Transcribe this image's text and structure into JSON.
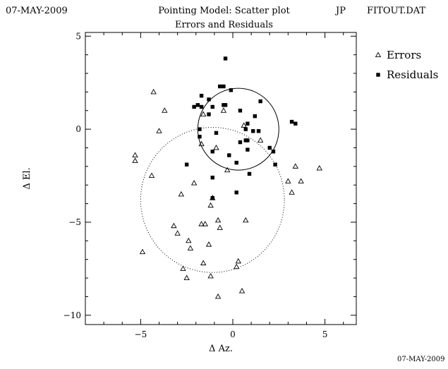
{
  "header": {
    "date": "07-MAY-2009",
    "title": "Pointing Model: Scatter plot",
    "subtitle": "Errors and Residuals",
    "author": "JP",
    "file": "FITOUT.DAT"
  },
  "footer": {
    "date": "07-MAY-2009"
  },
  "chart_data": {
    "type": "scatter",
    "title": "Pointing Model: Scatter plot",
    "subtitle": "Errors and Residuals",
    "xlabel": "Δ Az.",
    "ylabel": "Δ El.",
    "xlim": [
      -8,
      6.7
    ],
    "ylim": [
      -10.5,
      5.2
    ],
    "xticks": [
      -5,
      0,
      5
    ],
    "yticks": [
      5,
      0,
      -5,
      -10
    ],
    "xtick_labels": [
      "−5",
      "0",
      "5"
    ],
    "ytick_labels": [
      "5",
      "0",
      "−5",
      "−10"
    ],
    "grid": false,
    "legend_position": "right",
    "series": [
      {
        "name": "Errors",
        "marker": "triangle-open",
        "color": "#000000",
        "points": [
          [
            -4.3,
            2.0
          ],
          [
            -3.7,
            1.0
          ],
          [
            -4.0,
            -0.1
          ],
          [
            -5.3,
            -1.4
          ],
          [
            -5.3,
            -1.7
          ],
          [
            -4.4,
            -2.5
          ],
          [
            -4.9,
            -6.6
          ],
          [
            -3.2,
            -5.2
          ],
          [
            -3.0,
            -5.6
          ],
          [
            -2.8,
            -3.5
          ],
          [
            -2.4,
            -6.0
          ],
          [
            -2.3,
            -6.4
          ],
          [
            -2.7,
            -7.5
          ],
          [
            -2.5,
            -8.0
          ],
          [
            -2.1,
            -2.9
          ],
          [
            -1.7,
            -5.1
          ],
          [
            -1.5,
            -5.1
          ],
          [
            -1.6,
            -7.2
          ],
          [
            -1.3,
            -6.2
          ],
          [
            -1.2,
            -4.1
          ],
          [
            -1.1,
            -3.7
          ],
          [
            -1.2,
            -7.9
          ],
          [
            -0.8,
            -4.9
          ],
          [
            -0.7,
            -5.3
          ],
          [
            -0.8,
            -9.0
          ],
          [
            -0.9,
            -1.0
          ],
          [
            -1.6,
            0.8
          ],
          [
            -1.7,
            -0.8
          ],
          [
            -0.5,
            1.0
          ],
          [
            -0.3,
            -2.2
          ],
          [
            0.6,
            0.2
          ],
          [
            0.7,
            -4.9
          ],
          [
            0.3,
            -7.1
          ],
          [
            0.2,
            -7.4
          ],
          [
            0.5,
            -8.7
          ],
          [
            1.5,
            -0.6
          ],
          [
            3.0,
            -2.8
          ],
          [
            3.2,
            -3.4
          ],
          [
            3.4,
            -2.0
          ],
          [
            3.7,
            -2.8
          ],
          [
            4.7,
            -2.1
          ]
        ]
      },
      {
        "name": "Residuals",
        "marker": "square-filled",
        "color": "#000000",
        "points": [
          [
            -0.4,
            3.8
          ],
          [
            -0.7,
            2.3
          ],
          [
            -0.5,
            2.3
          ],
          [
            -0.1,
            2.1
          ],
          [
            -1.7,
            1.8
          ],
          [
            -1.3,
            1.6
          ],
          [
            -2.1,
            1.2
          ],
          [
            -1.9,
            1.3
          ],
          [
            -1.7,
            1.2
          ],
          [
            -1.1,
            1.2
          ],
          [
            -0.4,
            1.3
          ],
          [
            -0.5,
            1.3
          ],
          [
            -1.3,
            0.8
          ],
          [
            -1.8,
            0.0
          ],
          [
            -1.8,
            -0.4
          ],
          [
            -0.9,
            -0.2
          ],
          [
            0.4,
            1.0
          ],
          [
            0.8,
            0.3
          ],
          [
            0.8,
            -0.6
          ],
          [
            0.7,
            -0.6
          ],
          [
            0.8,
            -1.1
          ],
          [
            1.1,
            -0.1
          ],
          [
            1.2,
            0.7
          ],
          [
            1.4,
            -0.1
          ],
          [
            0.7,
            0.0
          ],
          [
            0.4,
            -0.7
          ],
          [
            -0.2,
            -1.4
          ],
          [
            0.2,
            -1.8
          ],
          [
            0.9,
            -2.4
          ],
          [
            1.5,
            1.5
          ],
          [
            2.0,
            -1.0
          ],
          [
            2.2,
            -1.2
          ],
          [
            2.3,
            -1.9
          ],
          [
            3.2,
            0.4
          ],
          [
            3.4,
            0.3
          ],
          [
            -2.5,
            -1.9
          ],
          [
            -1.1,
            -2.6
          ],
          [
            -1.1,
            -3.7
          ],
          [
            0.2,
            -3.4
          ],
          [
            -1.1,
            -1.2
          ]
        ]
      }
    ],
    "circles": [
      {
        "name": "residual-circle",
        "cx": 0.3,
        "cy": 0.0,
        "r": 2.2,
        "style": "solid"
      },
      {
        "name": "error-circle",
        "cx": -1.1,
        "cy": -3.8,
        "r": 3.9,
        "style": "dotted"
      }
    ]
  }
}
